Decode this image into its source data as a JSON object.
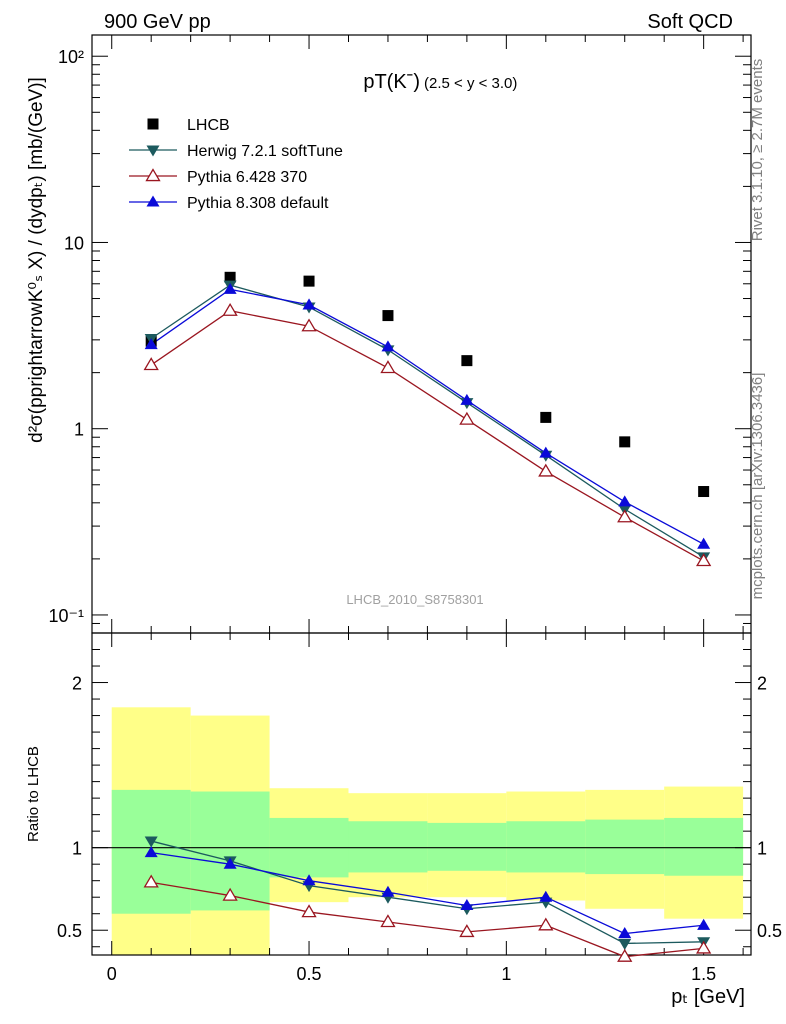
{
  "header": {
    "left": "900 GeV pp",
    "right": "Soft QCD"
  },
  "side_text": {
    "top": "Rivet 3.1.10, ≥ 2.7M events",
    "bottom": "mcplots.cern.ch [arXiv:1306.3436]"
  },
  "chart_data": {
    "type": "line",
    "title": "pT(Kˉ)",
    "title_range": "(2.5 < y < 3.0)",
    "watermark": "LHCB_2010_S8758301",
    "ylabel": "d²σ(pprightarrowK⁰ₛ X) / (dydpₜ) [mb/(GeV)]",
    "xlabel": "pₜ [GeV]",
    "ratio_ylabel": "Ratio to LHCB",
    "xlim": [
      -0.05,
      1.62
    ],
    "ylim": [
      0.08,
      130
    ],
    "yscale": "log",
    "ratio_ylim": [
      0.35,
      2.3
    ],
    "x_ticks": [
      "0",
      "0.5",
      "1",
      "1.5"
    ],
    "y_ticks": [
      "10⁻¹",
      "1",
      "10",
      "10²"
    ],
    "ratio_ticks": [
      "0.5",
      "1",
      "2"
    ],
    "legend_position": "top-left",
    "x": [
      0.1,
      0.3,
      0.5,
      0.7,
      0.9,
      1.1,
      1.3,
      1.5
    ],
    "bin_edges": [
      0.0,
      0.2,
      0.4,
      0.6,
      0.8,
      1.0,
      1.2,
      1.4,
      1.6
    ],
    "series": [
      {
        "name": "LHCB",
        "color": "#000000",
        "marker": "square",
        "line": false,
        "values": [
          2.95,
          6.5,
          6.2,
          4.05,
          2.32,
          1.15,
          0.85,
          0.46
        ]
      },
      {
        "name": "Herwig 7.2.1 softTune",
        "color": "#1c5a5e",
        "marker": "triangle-down",
        "line": true,
        "values": [
          3.05,
          5.9,
          4.5,
          2.65,
          1.38,
          0.72,
          0.37,
          0.205
        ]
      },
      {
        "name": "Pythia 6.428 370",
        "color": "#9a1620",
        "marker": "triangle-open",
        "line": true,
        "values": [
          2.2,
          4.3,
          3.55,
          2.12,
          1.12,
          0.59,
          0.335,
          0.195
        ]
      },
      {
        "name": "Pythia 8.308 default",
        "color": "#0a0ad8",
        "marker": "triangle-up",
        "line": true,
        "values": [
          2.83,
          5.6,
          4.62,
          2.75,
          1.42,
          0.74,
          0.405,
          0.24
        ]
      }
    ],
    "ratio_series": [
      {
        "name": "Herwig 7.2.1 softTune",
        "values": [
          1.04,
          0.92,
          0.77,
          0.7,
          0.63,
          0.67,
          0.42,
          0.43
        ]
      },
      {
        "name": "Pythia 6.428 370",
        "values": [
          0.79,
          0.71,
          0.61,
          0.55,
          0.49,
          0.53,
          0.34,
          0.39
        ]
      },
      {
        "name": "Pythia 8.308 default",
        "values": [
          0.97,
          0.9,
          0.8,
          0.73,
          0.65,
          0.7,
          0.48,
          0.53
        ]
      }
    ],
    "ratio_bands": {
      "inner_color": "#99ff99",
      "outer_color": "#ffff88",
      "inner": [
        [
          0.6,
          1.35
        ],
        [
          0.62,
          1.34
        ],
        [
          0.82,
          1.18
        ],
        [
          0.85,
          1.16
        ],
        [
          0.86,
          1.15
        ],
        [
          0.85,
          1.16
        ],
        [
          0.84,
          1.17
        ],
        [
          0.83,
          1.18
        ]
      ],
      "outer": [
        [
          0.35,
          1.85
        ],
        [
          0.35,
          1.8
        ],
        [
          0.67,
          1.36
        ],
        [
          0.7,
          1.33
        ],
        [
          0.7,
          1.33
        ],
        [
          0.68,
          1.34
        ],
        [
          0.63,
          1.35
        ],
        [
          0.57,
          1.37
        ]
      ]
    }
  }
}
